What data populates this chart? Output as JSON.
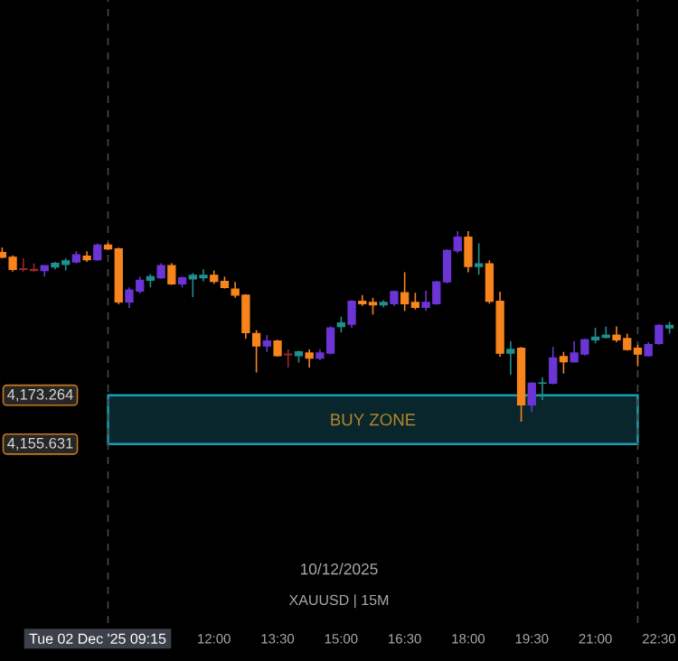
{
  "chart_data": {
    "type": "candlestick",
    "x": [
      7,
      7.25,
      7.5,
      7.75,
      8,
      8.25,
      8.5,
      8.75,
      9,
      9.25,
      9.5,
      9.75,
      10,
      10.25,
      10.5,
      10.75,
      11,
      11.25,
      11.5,
      11.75,
      12,
      12.25,
      12.5,
      12.75,
      13,
      13.25,
      13.5,
      13.75,
      14,
      14.25,
      14.5,
      14.75,
      15,
      15.25,
      15.5,
      15.75,
      16,
      16.25,
      16.5,
      16.75,
      17,
      17.25,
      17.5,
      17.75,
      18,
      18.25,
      18.5,
      18.75,
      19,
      19.25,
      19.5,
      19.75,
      20,
      20.25,
      20.5,
      20.75,
      21,
      21.25,
      21.5,
      21.75,
      22,
      22.25,
      22.5,
      22.75
    ],
    "ohlc": [
      [
        4224.8,
        4226.6,
        4222.7,
        4223.1
      ],
      [
        4223.1,
        4223.8,
        4217.9,
        4218.7
      ],
      [
        4218.9,
        4222.7,
        4217.9,
        4218.7
      ],
      [
        4218.7,
        4220.9,
        4217.9,
        4218.3
      ],
      [
        4218.3,
        4220.1,
        4216.1,
        4220.1
      ],
      [
        4219.6,
        4221.4,
        4218.7,
        4220.9
      ],
      [
        4220.5,
        4222.7,
        4218.3,
        4221.8
      ],
      [
        4221.4,
        4225.3,
        4220.9,
        4224.0
      ],
      [
        4223.5,
        4225.3,
        4221.4,
        4222.2
      ],
      [
        4222.2,
        4228.1,
        4221.8,
        4227.5
      ],
      [
        4227.5,
        4228.3,
        4225.7,
        4226.1
      ],
      [
        4226.1,
        4226.6,
        4206.1,
        4207.0
      ],
      [
        4207.0,
        4212.2,
        4204.8,
        4211.3
      ],
      [
        4210.9,
        4216.1,
        4210.0,
        4214.8
      ],
      [
        4214.8,
        4217.0,
        4212.2,
        4216.1
      ],
      [
        4215.7,
        4220.9,
        4215.3,
        4220.1
      ],
      [
        4220.1,
        4220.9,
        4213.1,
        4213.5
      ],
      [
        4213.5,
        4216.1,
        4212.2,
        4215.7
      ],
      [
        4215.3,
        4217.4,
        4208.7,
        4216.6
      ],
      [
        4215.7,
        4218.7,
        4214.4,
        4216.6
      ],
      [
        4216.6,
        4218.3,
        4213.5,
        4214.4
      ],
      [
        4214.4,
        4216.1,
        4211.8,
        4212.2
      ],
      [
        4211.6,
        4214.2,
        4208.5,
        4209.4
      ],
      [
        4209.4,
        4209.8,
        4193.7,
        4195.9
      ],
      [
        4195.5,
        4196.8,
        4181.5,
        4191.1
      ],
      [
        4191.1,
        4195.0,
        4188.9,
        4192.8
      ],
      [
        4192.8,
        4193.3,
        4187.2,
        4187.6
      ],
      [
        4188.1,
        4189.8,
        4183.3,
        4187.9
      ],
      [
        4187.6,
        4189.4,
        4185.0,
        4188.9
      ],
      [
        4188.5,
        4189.8,
        4183.3,
        4186.7
      ],
      [
        4186.7,
        4189.8,
        4185.9,
        4188.5
      ],
      [
        4188.5,
        4198.1,
        4188.1,
        4197.6
      ],
      [
        4198.1,
        4201.6,
        4195.9,
        4199.4
      ],
      [
        4198.9,
        4207.6,
        4197.6,
        4207.2
      ],
      [
        4207.2,
        4209.4,
        4205.5,
        4206.3
      ],
      [
        4206.8,
        4208.5,
        4202.4,
        4205.9
      ],
      [
        4205.9,
        4207.6,
        4205.0,
        4206.8
      ],
      [
        4206.3,
        4211.1,
        4205.5,
        4210.7
      ],
      [
        4210.3,
        4217.7,
        4203.7,
        4206.3
      ],
      [
        4206.8,
        4210.3,
        4204.2,
        4205.0
      ],
      [
        4205.0,
        4211.1,
        4203.7,
        4206.8
      ],
      [
        4206.3,
        4214.6,
        4205.9,
        4214.2
      ],
      [
        4214.2,
        4225.9,
        4213.7,
        4225.5
      ],
      [
        4225.5,
        4232.5,
        4224.6,
        4230.3
      ],
      [
        4230.3,
        4232.5,
        4217.7,
        4219.8
      ],
      [
        4219.8,
        4228.1,
        4216.8,
        4220.7
      ],
      [
        4220.7,
        4222.0,
        4206.3,
        4207.2
      ],
      [
        4207.2,
        4210.7,
        4187.2,
        4188.5
      ],
      [
        4188.5,
        4192.8,
        4180.7,
        4189.8
      ],
      [
        4190.2,
        4190.7,
        4163.7,
        4169.8
      ],
      [
        4169.8,
        4178.0,
        4167.2,
        4177.6
      ],
      [
        4177.6,
        4179.8,
        4171.5,
        4177.7
      ],
      [
        4177.6,
        4190.7,
        4177.2,
        4186.7
      ],
      [
        4187.2,
        4188.9,
        4181.1,
        4185.4
      ],
      [
        4185.4,
        4192.8,
        4185.0,
        4188.5
      ],
      [
        4188.1,
        4193.7,
        4187.6,
        4193.3
      ],
      [
        4193.3,
        4197.6,
        4192.0,
        4194.2
      ],
      [
        4194.2,
        4198.1,
        4193.7,
        4195.0
      ],
      [
        4195.0,
        4198.1,
        4192.4,
        4193.3
      ],
      [
        4193.7,
        4195.5,
        4189.4,
        4189.8
      ],
      [
        4190.2,
        4191.5,
        4183.7,
        4188.1
      ],
      [
        4187.6,
        4192.4,
        4187.2,
        4191.5
      ],
      [
        4192.0,
        4198.9,
        4191.5,
        4198.5
      ],
      [
        4197.6,
        4199.8,
        4195.5,
        4198.5
      ]
    ],
    "colors": [
      "#f7841d",
      "#f7841d",
      "#a0262a",
      "#a0262a",
      "#6b35d6",
      "#1f8f8f",
      "#1f8f8f",
      "#6b35d6",
      "#f7841d",
      "#6b35d6",
      "#f7841d",
      "#f7841d",
      "#6b35d6",
      "#6b35d6",
      "#1f8f8f",
      "#6b35d6",
      "#f7841d",
      "#6b35d6",
      "#1f8f8f",
      "#1f8f8f",
      "#f7841d",
      "#f7841d",
      "#f7841d",
      "#f7841d",
      "#f7841d",
      "#6b35d6",
      "#f7841d",
      "#a0262a",
      "#1f8f8f",
      "#f7841d",
      "#6b35d6",
      "#6b35d6",
      "#1f8f8f",
      "#6b35d6",
      "#f7841d",
      "#f7841d",
      "#1f8f8f",
      "#6b35d6",
      "#f7841d",
      "#f7841d",
      "#6b35d6",
      "#6b35d6",
      "#6b35d6",
      "#6b35d6",
      "#f7841d",
      "#1f8f8f",
      "#f7841d",
      "#f7841d",
      "#1f8f8f",
      "#f7841d",
      "#6b35d6",
      "#1f8f8f",
      "#6b35d6",
      "#f7841d",
      "#6b35d6",
      "#6b35d6",
      "#1f8f8f",
      "#1f8f8f",
      "#f7841d",
      "#f7841d",
      "#f7841d",
      "#6b35d6",
      "#6b35d6",
      "#1f8f8f"
    ],
    "xlim": [
      6.95,
      22.95
    ],
    "xticks": [
      {
        "value": 12,
        "label": "12:00"
      },
      {
        "value": 13.5,
        "label": "13:30"
      },
      {
        "value": 15,
        "label": "15:00"
      },
      {
        "value": 16.5,
        "label": "16:30"
      },
      {
        "value": 18,
        "label": "18:00"
      },
      {
        "value": 19.5,
        "label": "19:30"
      },
      {
        "value": 21,
        "label": "21:00"
      },
      {
        "value": 22.5,
        "label": "22:30"
      }
    ],
    "ylim": [
      4091,
      4316
    ],
    "yticks": [
      {
        "value": 4155.631,
        "label": "4,155.631"
      },
      {
        "value": 4173.264,
        "label": "4,173.264"
      }
    ],
    "ref_lines": [
      {
        "axis": "x",
        "value": 9.5,
        "color": "#4a4a4a",
        "line_style": "dashed"
      },
      {
        "axis": "x",
        "value": 22,
        "color": "#4a4a4a",
        "line_style": "dashed"
      }
    ],
    "bands": [
      {
        "axis": "y",
        "from": 4155.631,
        "to": 4173.264,
        "label": "BUY ZONE",
        "color": "#1a9fb0"
      }
    ],
    "annotations": [
      "Tue 02 Dec '25  09:15",
      "10/12/2025",
      "XAUUSD | 15M"
    ]
  }
}
